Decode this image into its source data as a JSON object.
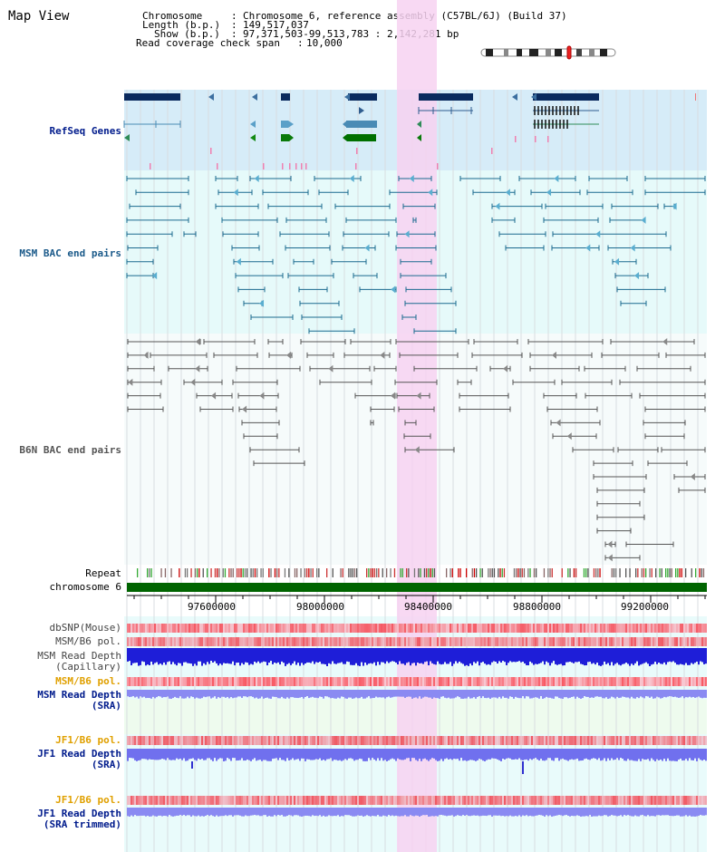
{
  "view": {
    "title": "Map View"
  },
  "header": {
    "chromosome_label": "Chromosome",
    "chromosome_value": "Chromosome 6, reference assembly (C57BL/6J) (Build 37)",
    "length_label": "Length (b.p.)",
    "length_value": "149,517,037",
    "show_label": "Show (b.p.)",
    "show_value": "97,371,503-99,513,783 : 2,142,281 bp",
    "coverage_label": "Read coverage check span",
    "coverage_value": "10,000"
  },
  "tracks": {
    "refseq": {
      "label": "RefSeq Genes",
      "color": "#001b8c"
    },
    "msm_bac": {
      "label": "MSM BAC end pairs",
      "color": "#1b5a8a"
    },
    "b6n_bac": {
      "label": "B6N BAC end pairs",
      "color": "#444444"
    },
    "repeat": {
      "label": "Repeat"
    },
    "chromosome": {
      "label": "chromosome 6",
      "color": "#006400"
    },
    "dbsnp": {
      "label": "dbSNP(Mouse)"
    },
    "msm_b6_pol": {
      "label": "MSM/B6 pol."
    },
    "msm_depth_cap": {
      "label1": "MSM Read Depth",
      "label2": "(Capillary)"
    },
    "msm_b6_pol2": {
      "label": "MSM/B6 pol.",
      "color": "#e0a000"
    },
    "msm_depth_sra": {
      "label1": "MSM Read Depth",
      "label2": "(SRA)"
    },
    "jf1_b6_pol": {
      "label": "JF1/B6 pol.",
      "color": "#e0a000"
    },
    "jf1_depth_sra": {
      "label1": "JF1 Read Depth",
      "label2": "(SRA)"
    },
    "jf1_b6_pol2": {
      "label": "JF1/B6 pol.",
      "color": "#e0a000"
    },
    "jf1_depth_trim": {
      "label1": "JF1 Read Depth",
      "label2": "(SRA trimmed)"
    }
  },
  "axis": {
    "ticks": [
      "97600000",
      "98000000",
      "98400000",
      "98800000",
      "99200000"
    ]
  },
  "colors": {
    "highlight": "#f9d6f2",
    "refseq_bg": "#d6ecf8",
    "bac_bg": "#e6fafa",
    "depth_blue": "#1a1ae6",
    "depth_light": "#8080f0"
  }
}
